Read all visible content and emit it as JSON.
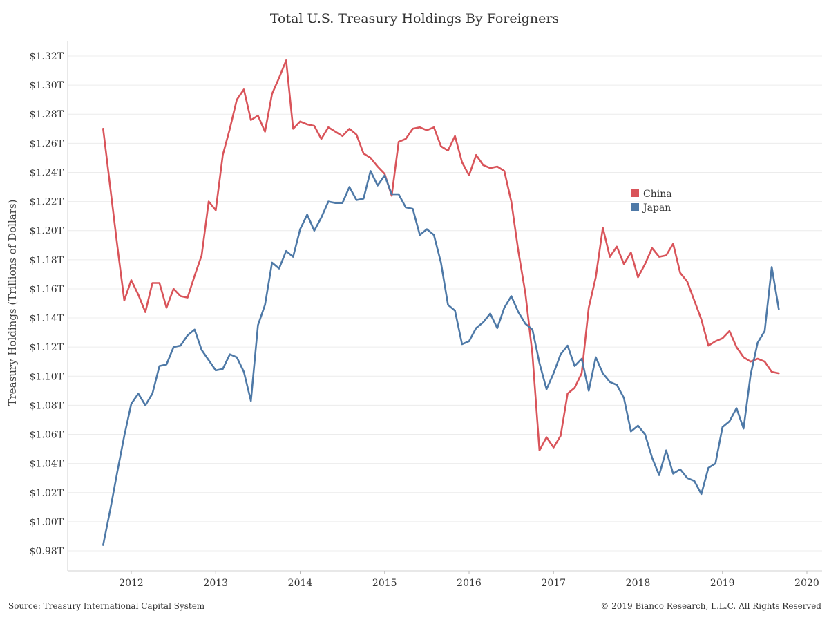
{
  "chart_data": {
    "type": "line",
    "title": "Total U.S. Treasury Holdings By Foreigners",
    "xlabel": "",
    "ylabel": "Treasury Holdings (Trillions of Dollars)",
    "ylim": [
      0.97,
      1.33
    ],
    "y_ticks": [
      0.98,
      1.0,
      1.02,
      1.04,
      1.06,
      1.08,
      1.1,
      1.12,
      1.14,
      1.16,
      1.18,
      1.2,
      1.22,
      1.24,
      1.26,
      1.28,
      1.3,
      1.32
    ],
    "y_tick_labels": [
      "$0.98T",
      "$1.00T",
      "$1.02T",
      "$1.04T",
      "$1.06T",
      "$1.08T",
      "$1.10T",
      "$1.12T",
      "$1.14T",
      "$1.16T",
      "$1.18T",
      "$1.20T",
      "$1.22T",
      "$1.24T",
      "$1.26T",
      "$1.28T",
      "$1.30T",
      "$1.32T"
    ],
    "x_ticks": [
      2012,
      2013,
      2014,
      2015,
      2016,
      2017,
      2018,
      2019,
      2020
    ],
    "x_tick_labels": [
      "2012",
      "2013",
      "2014",
      "2015",
      "2016",
      "2017",
      "2018",
      "2019",
      "2020"
    ],
    "xlim": [
      2011.0,
      2020.0
    ],
    "x_start": 2011.667,
    "x_step": 0.08333,
    "grid": true,
    "legend_position": "right-center",
    "series": [
      {
        "name": "China",
        "color": "#D9545A",
        "values": [
          1.27,
          1.23,
          1.19,
          1.152,
          1.166,
          1.156,
          1.144,
          1.164,
          1.164,
          1.147,
          1.16,
          1.155,
          1.154,
          1.169,
          1.183,
          1.22,
          1.214,
          1.252,
          1.27,
          1.29,
          1.297,
          1.276,
          1.279,
          1.268,
          1.294,
          1.305,
          1.317,
          1.27,
          1.275,
          1.273,
          1.272,
          1.263,
          1.271,
          1.268,
          1.265,
          1.27,
          1.266,
          1.253,
          1.25,
          1.244,
          1.239,
          1.224,
          1.261,
          1.263,
          1.27,
          1.271,
          1.269,
          1.271,
          1.258,
          1.255,
          1.265,
          1.247,
          1.238,
          1.252,
          1.245,
          1.243,
          1.244,
          1.241,
          1.22,
          1.186,
          1.157,
          1.115,
          1.049,
          1.058,
          1.051,
          1.059,
          1.088,
          1.092,
          1.102,
          1.147,
          1.168,
          1.202,
          1.182,
          1.189,
          1.177,
          1.185,
          1.168,
          1.177,
          1.188,
          1.182,
          1.183,
          1.191,
          1.171,
          1.165,
          1.152,
          1.139,
          1.121,
          1.124,
          1.126,
          1.131,
          1.12,
          1.113,
          1.11,
          1.112,
          1.11,
          1.103,
          1.102
        ]
      },
      {
        "name": "Japan",
        "color": "#4E79A7",
        "values": [
          0.984,
          1.008,
          1.034,
          1.059,
          1.081,
          1.088,
          1.08,
          1.088,
          1.107,
          1.108,
          1.12,
          1.121,
          1.128,
          1.132,
          1.118,
          1.111,
          1.104,
          1.105,
          1.115,
          1.113,
          1.103,
          1.083,
          1.135,
          1.149,
          1.178,
          1.174,
          1.186,
          1.182,
          1.201,
          1.211,
          1.2,
          1.209,
          1.22,
          1.219,
          1.219,
          1.23,
          1.221,
          1.222,
          1.241,
          1.231,
          1.238,
          1.225,
          1.225,
          1.216,
          1.215,
          1.197,
          1.201,
          1.197,
          1.178,
          1.149,
          1.145,
          1.122,
          1.124,
          1.133,
          1.137,
          1.143,
          1.133,
          1.147,
          1.155,
          1.144,
          1.136,
          1.132,
          1.109,
          1.091,
          1.102,
          1.115,
          1.121,
          1.107,
          1.112,
          1.09,
          1.113,
          1.102,
          1.096,
          1.094,
          1.085,
          1.062,
          1.066,
          1.06,
          1.044,
          1.032,
          1.049,
          1.033,
          1.036,
          1.03,
          1.028,
          1.019,
          1.037,
          1.04,
          1.065,
          1.069,
          1.078,
          1.064,
          1.101,
          1.123,
          1.131,
          1.175,
          1.146
        ]
      }
    ],
    "legend": [
      {
        "label": "China",
        "color": "#D9545A"
      },
      {
        "label": "Japan",
        "color": "#4E79A7"
      }
    ]
  },
  "source_note": "Source: Treasury International Capital System",
  "copyright_note": "© 2019 Bianco Research, L.L.C. All Rights Reserved"
}
